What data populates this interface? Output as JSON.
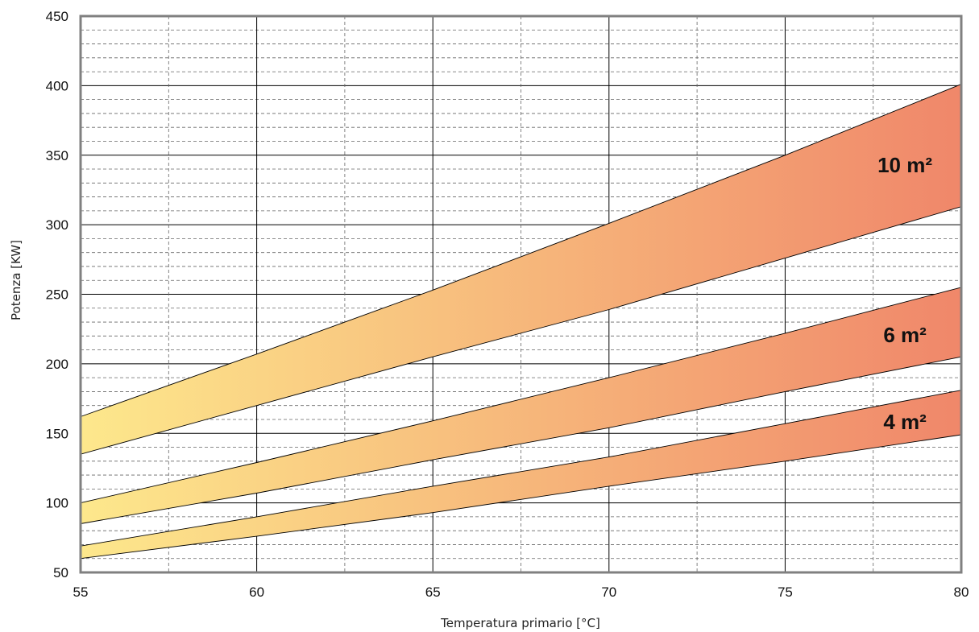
{
  "chart_data": {
    "type": "area",
    "xlabel": "Temperatura primario [°C]",
    "ylabel": "Potenza [KW]",
    "xlim": [
      55,
      80
    ],
    "ylim": [
      50,
      450
    ],
    "x_ticks": [
      55,
      60,
      65,
      70,
      75,
      80
    ],
    "y_ticks": [
      50,
      100,
      150,
      200,
      250,
      300,
      350,
      400,
      450
    ],
    "grid": true,
    "legend": "none",
    "gradient_colors": [
      "#fde88c",
      "#f0876a"
    ],
    "bands": [
      {
        "label": "10 m²",
        "x": [
          55,
          60,
          65,
          70,
          75,
          80
        ],
        "upper": [
          162,
          207,
          253,
          301,
          350,
          401
        ],
        "lower": [
          135,
          170,
          205,
          239,
          276,
          313
        ]
      },
      {
        "label": "6 m²",
        "x": [
          55,
          60,
          65,
          70,
          75,
          80
        ],
        "upper": [
          100,
          129,
          159,
          190,
          222,
          255
        ],
        "lower": [
          85,
          107,
          131,
          154,
          180,
          205
        ]
      },
      {
        "label": "4 m²",
        "x": [
          55,
          60,
          65,
          70,
          75,
          80
        ],
        "upper": [
          69,
          90,
          112,
          133,
          157,
          181
        ],
        "lower": [
          60,
          76,
          93,
          112,
          130,
          149
        ]
      }
    ]
  }
}
